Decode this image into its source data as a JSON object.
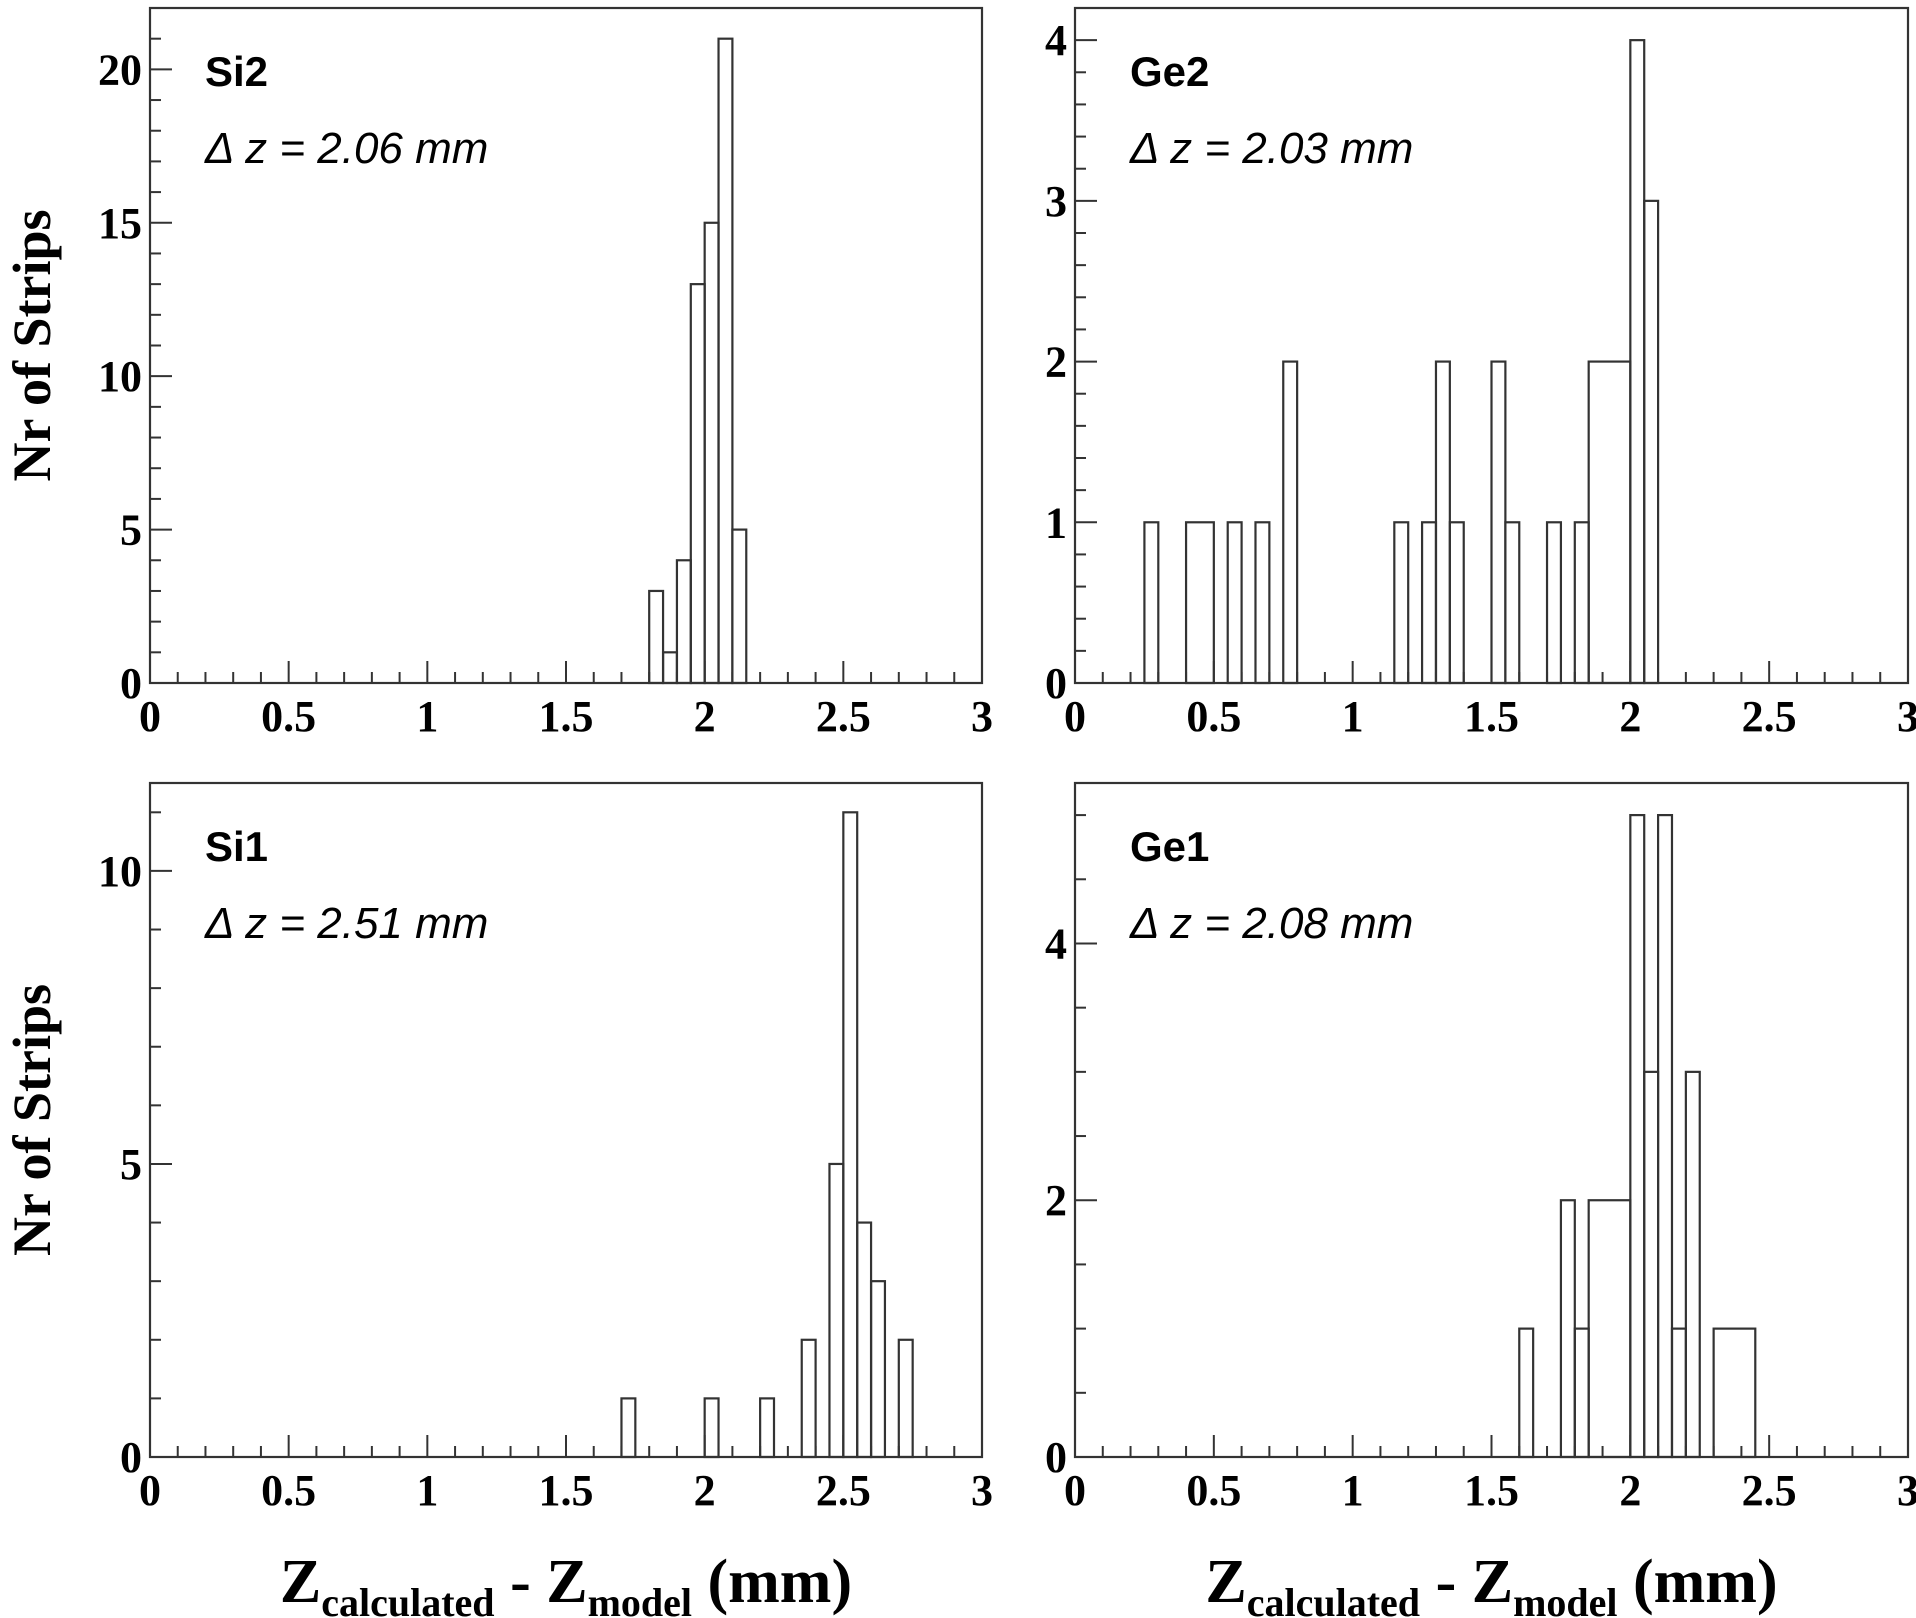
{
  "chart_data": [
    {
      "type": "histogram",
      "panel": "top-left",
      "name": "Si2",
      "annotation": "Δ z = 2.06 mm",
      "ylabel": "Nr of Strips",
      "xlabel": {
        "main1": "Z",
        "sub1": "calculated",
        "mid": " - Z",
        "sub2": "model",
        "unit": " (mm)"
      },
      "xlim": [
        0,
        3
      ],
      "ylim": [
        0,
        22
      ],
      "xticks": [
        0,
        0.5,
        1,
        1.5,
        2,
        2.5,
        3
      ],
      "xtick_labels": [
        "0",
        "0.5",
        "1",
        "1.5",
        "2",
        "2.5",
        "3"
      ],
      "yticks": [
        0,
        5,
        10,
        15,
        20
      ],
      "ytick_labels": [
        "0",
        "5",
        "10",
        "15",
        "20"
      ],
      "bins": [
        [
          1.8,
          1.85,
          3
        ],
        [
          1.85,
          1.9,
          1
        ],
        [
          1.9,
          1.95,
          4
        ],
        [
          1.95,
          2.0,
          13
        ],
        [
          2.0,
          2.05,
          15
        ],
        [
          2.05,
          2.1,
          21
        ],
        [
          2.1,
          2.15,
          5
        ]
      ]
    },
    {
      "type": "histogram",
      "panel": "top-right",
      "name": "Ge2",
      "annotation": "Δ z = 2.03 mm",
      "ylabel": "",
      "xlabel": {
        "main1": "",
        "sub1": "",
        "mid": "",
        "sub2": "",
        "unit": ""
      },
      "xlim": [
        0,
        3
      ],
      "ylim": [
        0,
        4.2
      ],
      "xticks": [
        0,
        0.5,
        1,
        1.5,
        2,
        2.5,
        3
      ],
      "xtick_labels": [
        "0",
        "0.5",
        "1",
        "1.5",
        "2",
        "2.5",
        "3"
      ],
      "yticks": [
        0,
        1,
        2,
        3,
        4
      ],
      "ytick_labels": [
        "0",
        "1",
        "2",
        "3",
        "4"
      ],
      "bins": [
        [
          0.25,
          0.3,
          1
        ],
        [
          0.4,
          0.5,
          1
        ],
        [
          0.55,
          0.6,
          1
        ],
        [
          0.65,
          0.7,
          1
        ],
        [
          0.75,
          0.8,
          2
        ],
        [
          1.15,
          1.2,
          1
        ],
        [
          1.25,
          1.3,
          1
        ],
        [
          1.3,
          1.35,
          2
        ],
        [
          1.35,
          1.4,
          1
        ],
        [
          1.5,
          1.55,
          2
        ],
        [
          1.55,
          1.6,
          1
        ],
        [
          1.7,
          1.75,
          1
        ],
        [
          1.8,
          1.85,
          1
        ],
        [
          1.85,
          2.0,
          2
        ],
        [
          2.0,
          2.05,
          4
        ],
        [
          2.05,
          2.1,
          3
        ]
      ]
    },
    {
      "type": "histogram",
      "panel": "bottom-left",
      "name": "Si1",
      "annotation": "Δ z = 2.51 mm",
      "ylabel": "Nr of Strips",
      "xlabel": {
        "main1": "Z",
        "sub1": "calculated",
        "mid": " - Z",
        "sub2": "model",
        "unit": " (mm)"
      },
      "xlim": [
        0,
        3
      ],
      "ylim": [
        0,
        11.5
      ],
      "xticks": [
        0,
        0.5,
        1,
        1.5,
        2,
        2.5,
        3
      ],
      "xtick_labels": [
        "0",
        "0.5",
        "1",
        "1.5",
        "2",
        "2.5",
        "3"
      ],
      "yticks": [
        0,
        5,
        10
      ],
      "ytick_labels": [
        "0",
        "5",
        "10"
      ],
      "bins": [
        [
          1.7,
          1.75,
          1
        ],
        [
          2.0,
          2.05,
          1
        ],
        [
          2.2,
          2.25,
          1
        ],
        [
          2.35,
          2.4,
          2
        ],
        [
          2.45,
          2.5,
          5
        ],
        [
          2.5,
          2.55,
          11
        ],
        [
          2.55,
          2.6,
          4
        ],
        [
          2.6,
          2.65,
          3
        ],
        [
          2.7,
          2.75,
          2
        ]
      ]
    },
    {
      "type": "histogram",
      "panel": "bottom-right",
      "name": "Ge1",
      "annotation": "Δ z = 2.08 mm",
      "ylabel": "",
      "xlabel": {
        "main1": "Z",
        "sub1": "calculated",
        "mid": " - Z",
        "sub2": "model",
        "unit": " (mm)"
      },
      "xlim": [
        0,
        3
      ],
      "ylim": [
        0,
        5.25
      ],
      "xticks": [
        0,
        0.5,
        1,
        1.5,
        2,
        2.5,
        3
      ],
      "xtick_labels": [
        "0",
        "0.5",
        "1",
        "1.5",
        "2",
        "2.5",
        "3"
      ],
      "yticks": [
        0,
        2,
        4
      ],
      "ytick_labels": [
        "0",
        "2",
        "4"
      ],
      "bins": [
        [
          1.6,
          1.65,
          1
        ],
        [
          1.75,
          1.8,
          2
        ],
        [
          1.8,
          1.85,
          1
        ],
        [
          1.85,
          2.0,
          2
        ],
        [
          2.0,
          2.05,
          5
        ],
        [
          2.05,
          2.1,
          3
        ],
        [
          2.1,
          2.15,
          5
        ],
        [
          2.15,
          2.2,
          1
        ],
        [
          2.2,
          2.25,
          3
        ],
        [
          2.3,
          2.45,
          1
        ]
      ]
    }
  ]
}
